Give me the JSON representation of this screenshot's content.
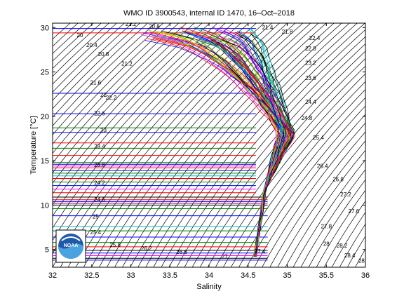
{
  "chart_data": {
    "type": "line",
    "title": "WMO ID 3900543, internal ID 1470, 16–Oct–2018",
    "xlabel": "Salinity",
    "ylabel": "Temperature [°C]",
    "xlim": [
      32,
      36
    ],
    "ylim": [
      3,
      30.5
    ],
    "x_ticks": [
      "32",
      "32.5",
      "33",
      "33.5",
      "34",
      "34.5",
      "35",
      "35.5",
      "36"
    ],
    "y_ticks": [
      "5",
      "10",
      "15",
      "20",
      "25",
      "30"
    ],
    "grid": false,
    "isopycnal_labels": [
      {
        "text": "20",
        "s": 32.35,
        "t": 28.9
      },
      {
        "text": "20.4",
        "s": 32.5,
        "t": 27.8
      },
      {
        "text": "20.8",
        "s": 32.65,
        "t": 26.8
      },
      {
        "text": "21.2",
        "s": 32.95,
        "t": 25.7
      },
      {
        "text": "21.6",
        "s": 32.55,
        "t": 23.6
      },
      {
        "text": "22",
        "s": 32.65,
        "t": 22.2
      },
      {
        "text": "22.2",
        "s": 32.75,
        "t": 21.9
      },
      {
        "text": "22.6",
        "s": 32.6,
        "t": 20.1
      },
      {
        "text": "23",
        "s": 32.65,
        "t": 18.2
      },
      {
        "text": "23.4",
        "s": 32.6,
        "t": 16.4
      },
      {
        "text": "23.8",
        "s": 32.6,
        "t": 14.3
      },
      {
        "text": "24.2",
        "s": 32.6,
        "t": 12.3
      },
      {
        "text": "24.6",
        "s": 32.6,
        "t": 10.4
      },
      {
        "text": "25",
        "s": 32.55,
        "t": 8.5
      },
      {
        "text": "25.4",
        "s": 32.55,
        "t": 6.7
      },
      {
        "text": "25.8",
        "s": 32.8,
        "t": 5.3
      },
      {
        "text": "26.2",
        "s": 33.2,
        "t": 4.9
      },
      {
        "text": "26.6",
        "s": 33.65,
        "t": 4.5
      },
      {
        "text": "27",
        "s": 34.2,
        "t": 4.0
      },
      {
        "text": "21.2",
        "s": 33.0,
        "t": 30.2
      },
      {
        "text": "20.8",
        "s": 33.3,
        "t": 29.9
      },
      {
        "text": "21.4",
        "s": 34.75,
        "t": 29.8
      },
      {
        "text": "21.8",
        "s": 35.0,
        "t": 29.3
      },
      {
        "text": "22.4",
        "s": 35.35,
        "t": 28.6
      },
      {
        "text": "22.8",
        "s": 35.3,
        "t": 27.4
      },
      {
        "text": "23.2",
        "s": 35.3,
        "t": 25.8
      },
      {
        "text": "23.6",
        "s": 35.3,
        "t": 24.1
      },
      {
        "text": "24.4",
        "s": 35.3,
        "t": 21.4
      },
      {
        "text": "24.8",
        "s": 35.25,
        "t": 19.6
      },
      {
        "text": "25.4",
        "s": 35.4,
        "t": 17.4
      },
      {
        "text": "26.4",
        "s": 35.45,
        "t": 14.2
      },
      {
        "text": "26.8",
        "s": 35.65,
        "t": 12.7
      },
      {
        "text": "27.2",
        "s": 35.75,
        "t": 11.0
      },
      {
        "text": "27.6",
        "s": 35.85,
        "t": 9.1
      },
      {
        "text": "27.8",
        "s": 35.5,
        "t": 7.4
      },
      {
        "text": "28",
        "s": 35.5,
        "t": 5.4
      },
      {
        "text": "28.2",
        "s": 35.7,
        "t": 5.2
      },
      {
        "text": "28.4",
        "s": 35.8,
        "t": 4.1
      },
      {
        "text": "28",
        "s": 35.95,
        "t": 3.5
      },
      {
        "text": "27.4",
        "s": 34.65,
        "t": 4.6
      }
    ],
    "horizontal_lines": [
      {
        "t": 29.9,
        "color": "#0000ff"
      },
      {
        "t": 29.4,
        "color": "#ff0000"
      },
      {
        "t": 22.6,
        "color": "#0000ff"
      },
      {
        "t": 20.3,
        "color": "#0000ff"
      },
      {
        "t": 18.7,
        "color": "#008000"
      },
      {
        "t": 18.2,
        "color": "#0000ff"
      },
      {
        "t": 17.0,
        "color": "#ff0000"
      },
      {
        "t": 16.4,
        "color": "#008000"
      },
      {
        "t": 15.6,
        "color": "#ff0000"
      },
      {
        "t": 14.8,
        "color": "#008000"
      },
      {
        "t": 14.6,
        "color": "#0000ff"
      },
      {
        "t": 14.4,
        "color": "#ff00ff"
      },
      {
        "t": 14.2,
        "color": "#ff0000"
      },
      {
        "t": 13.9,
        "color": "#0000ff"
      },
      {
        "t": 13.6,
        "color": "#008000"
      },
      {
        "t": 13.3,
        "color": "#00bfbf"
      },
      {
        "t": 13.0,
        "color": "#ff0000"
      },
      {
        "t": 12.6,
        "color": "#008000"
      },
      {
        "t": 12.2,
        "color": "#0000ff"
      },
      {
        "t": 11.8,
        "color": "#ff00ff"
      },
      {
        "t": 11.4,
        "color": "#ff0000"
      },
      {
        "t": 10.9,
        "color": "#000000"
      },
      {
        "t": 10.6,
        "color": "#ff0000"
      },
      {
        "t": 10.4,
        "color": "#0000ff"
      },
      {
        "t": 10.2,
        "color": "#800080"
      },
      {
        "t": 10.0,
        "color": "#000000"
      },
      {
        "t": 9.6,
        "color": "#008000"
      },
      {
        "t": 8.8,
        "color": "#0000ff"
      },
      {
        "t": 7.6,
        "color": "#00bfbf"
      },
      {
        "t": 7.1,
        "color": "#008000"
      },
      {
        "t": 6.4,
        "color": "#0000ff"
      },
      {
        "t": 5.8,
        "color": "#008000"
      },
      {
        "t": 5.3,
        "color": "#ff0000"
      },
      {
        "t": 4.9,
        "color": "#000000"
      },
      {
        "t": 4.6,
        "color": "#0000ff"
      },
      {
        "t": 4.3,
        "color": "#ff00ff"
      },
      {
        "t": 4.0,
        "color": "#000000"
      },
      {
        "t": 3.8,
        "color": "#0000ff"
      }
    ],
    "profile_colors": [
      "#0000ff",
      "#008000",
      "#ff0000",
      "#00bfbf",
      "#ff00ff",
      "#bfbf00",
      "#000000"
    ],
    "profile_count": 70,
    "logo": {
      "icon": "noaa-logo-icon",
      "text": "NOAA"
    }
  }
}
